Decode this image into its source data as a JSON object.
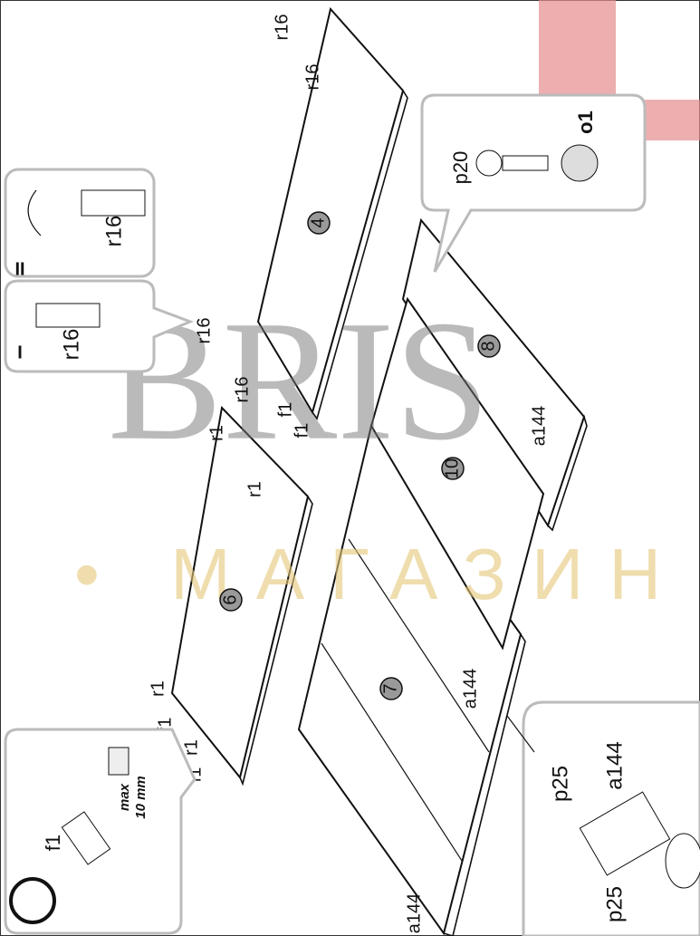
{
  "watermark": {
    "brand": "BRIS",
    "subtitle": "• МАГАЗИН"
  },
  "panels": [
    "4",
    "6",
    "7",
    "8",
    "10"
  ],
  "labels": [
    "r16",
    "r16",
    "r16",
    "r16",
    "r1",
    "f1",
    "f1",
    "r1",
    "r1",
    "f1",
    "r1",
    "f1",
    "a144",
    "a144",
    "a144"
  ],
  "insets": {
    "step_two": {
      "marker": "II",
      "part": "r16"
    },
    "step_one": {
      "marker": "I",
      "part": "r16"
    },
    "screw": {
      "screw": "p20",
      "cap": "o1"
    },
    "dowel": {
      "part": "f1",
      "note_max": "max",
      "note_depth": "10 mm"
    },
    "bracket": {
      "screw_top": "p25",
      "bracket": "a144",
      "screw_bottom": "p25"
    }
  }
}
